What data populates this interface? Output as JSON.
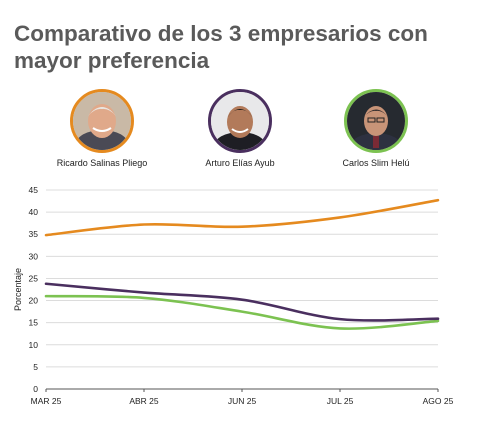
{
  "title": "Comparativo de los 3 empresarios con mayor preferencia",
  "people": [
    {
      "name": "Ricardo Salinas Pliego",
      "color": "#e58a1f"
    },
    {
      "name": "Arturo Elías Ayub",
      "color": "#4a2f5f"
    },
    {
      "name": "Carlos Slim Helú",
      "color": "#7cc251"
    }
  ],
  "chart_data": {
    "type": "line",
    "categories": [
      "MAR 25",
      "ABR 25",
      "JUN 25",
      "JUL 25",
      "AGO 25"
    ],
    "ylabel": "Porcentaje",
    "ylim": [
      0,
      45
    ],
    "yticks": [
      0,
      5,
      10,
      15,
      20,
      25,
      30,
      35,
      40,
      45
    ],
    "grid": true,
    "series": [
      {
        "name": "Ricardo Salinas Pliego",
        "color": "#e58a1f",
        "values": [
          34.8,
          37.2,
          36.7,
          38.8,
          42.7
        ]
      },
      {
        "name": "Arturo Elías Ayub",
        "color": "#4a2f5f",
        "values": [
          23.8,
          21.8,
          20.2,
          15.8,
          15.9
        ]
      },
      {
        "name": "Carlos Slim Helú",
        "color": "#7cc251",
        "values": [
          21.0,
          20.6,
          17.5,
          13.7,
          15.4
        ]
      }
    ]
  }
}
